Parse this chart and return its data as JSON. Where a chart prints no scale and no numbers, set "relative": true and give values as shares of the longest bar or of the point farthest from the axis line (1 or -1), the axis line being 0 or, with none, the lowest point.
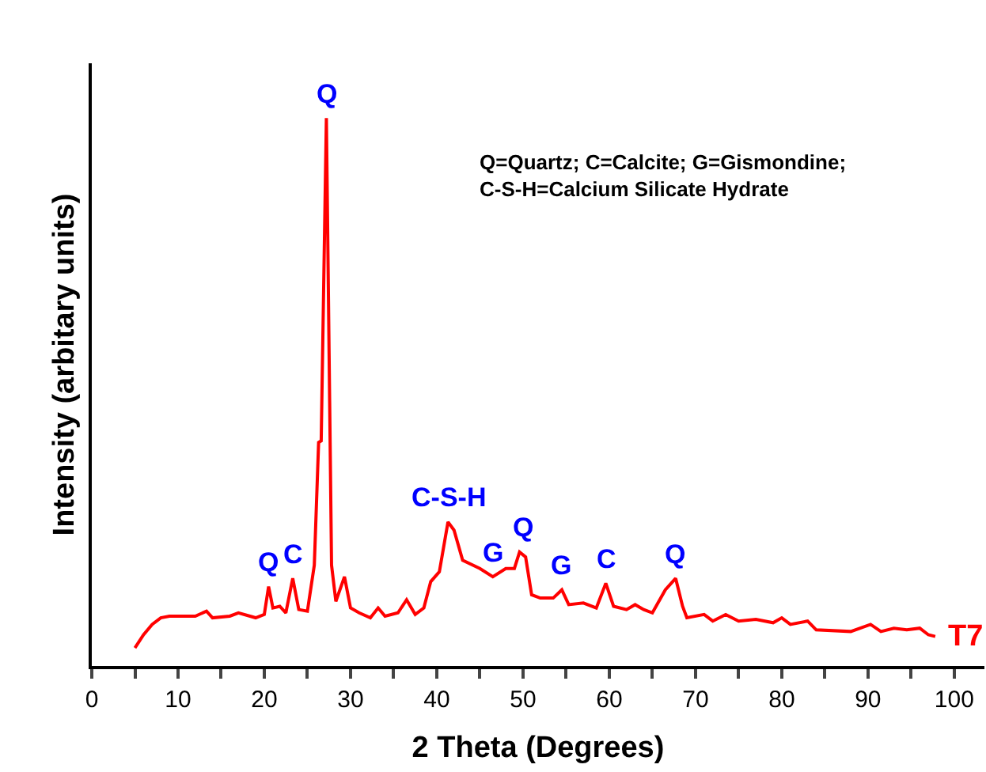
{
  "chart_data": {
    "type": "line",
    "relative": true,
    "xlabel": "2 Theta (Degrees)",
    "ylabel": "Intensity (arbitary units)",
    "xlim": [
      0,
      103.5
    ],
    "xticks": [
      0,
      {
        "value": 5,
        "label": null
      },
      10,
      {
        "value": 15,
        "label": null
      },
      20,
      {
        "value": 25,
        "label": null
      },
      30,
      {
        "value": 35,
        "label": null
      },
      40,
      {
        "value": 45,
        "label": null
      },
      50,
      {
        "value": 55,
        "label": null
      },
      60,
      {
        "value": 65,
        "label": null
      },
      70,
      {
        "value": 75,
        "label": null
      },
      80,
      {
        "value": 85,
        "label": null
      },
      90,
      {
        "value": 95,
        "label": null
      },
      100
    ],
    "legend": false,
    "marker": "none",
    "line_style": "solid",
    "series": [
      {
        "name": "T7",
        "color": "#ff0000",
        "x": [
          5,
          6,
          7,
          8,
          9,
          12,
          13.3,
          14,
          16,
          17,
          19,
          20,
          20.5,
          21,
          21.8,
          22.5,
          23.3,
          24,
          25,
          25.8,
          26.3,
          26.6,
          27.2,
          27.8,
          28.3,
          29.3,
          30,
          31,
          32.3,
          33.2,
          34,
          35.5,
          36.5,
          37.5,
          38.5,
          39.3,
          40.3,
          41.3,
          42,
          43,
          45,
          46.5,
          48,
          49,
          49.6,
          50.3,
          51,
          52,
          53.5,
          54.5,
          55.3,
          57,
          58.5,
          59.6,
          60.5,
          62,
          63,
          64,
          65,
          66.5,
          67.7,
          68.5,
          69,
          71,
          72,
          73.5,
          75,
          77,
          79,
          80,
          81,
          83,
          84,
          88,
          90.3,
          91.5,
          93,
          94.5,
          96,
          97,
          97.8
        ],
        "values": [
          0.033,
          0.057,
          0.076,
          0.088,
          0.091,
          0.091,
          0.1,
          0.088,
          0.091,
          0.097,
          0.088,
          0.094,
          0.145,
          0.106,
          0.109,
          0.097,
          0.16,
          0.103,
          0.1,
          0.184,
          0.408,
          0.411,
          1.0,
          0.184,
          0.118,
          0.163,
          0.106,
          0.097,
          0.088,
          0.106,
          0.091,
          0.097,
          0.121,
          0.094,
          0.106,
          0.154,
          0.172,
          0.263,
          0.248,
          0.193,
          0.178,
          0.163,
          0.178,
          0.178,
          0.208,
          0.199,
          0.13,
          0.124,
          0.124,
          0.139,
          0.112,
          0.115,
          0.106,
          0.151,
          0.109,
          0.103,
          0.112,
          0.103,
          0.097,
          0.139,
          0.16,
          0.109,
          0.088,
          0.094,
          0.082,
          0.094,
          0.082,
          0.085,
          0.079,
          0.088,
          0.076,
          0.082,
          0.066,
          0.063,
          0.076,
          0.063,
          0.069,
          0.066,
          0.069,
          0.057,
          0.054
        ]
      }
    ],
    "annotations": [
      {
        "text": "Q",
        "x": 20.5,
        "y": 0.145
      },
      {
        "text": "C",
        "x": 23.3,
        "y": 0.16
      },
      {
        "text": "Q",
        "x": 27.2,
        "y": 1.0
      },
      {
        "text": "C-S-H",
        "x": 41.3,
        "y": 0.263
      },
      {
        "text": "G",
        "x": 46.5,
        "y": 0.163
      },
      {
        "text": "Q",
        "x": 50,
        "y": 0.208
      },
      {
        "text": "G",
        "x": 54.5,
        "y": 0.139
      },
      {
        "text": "C",
        "x": 59.6,
        "y": 0.151
      },
      {
        "text": "Q",
        "x": 67.7,
        "y": 0.16
      },
      "Q=Quartz; C=Calcite; G=Gismondine;\nC-S-H=Calcium Silicate Hydrate"
    ]
  }
}
